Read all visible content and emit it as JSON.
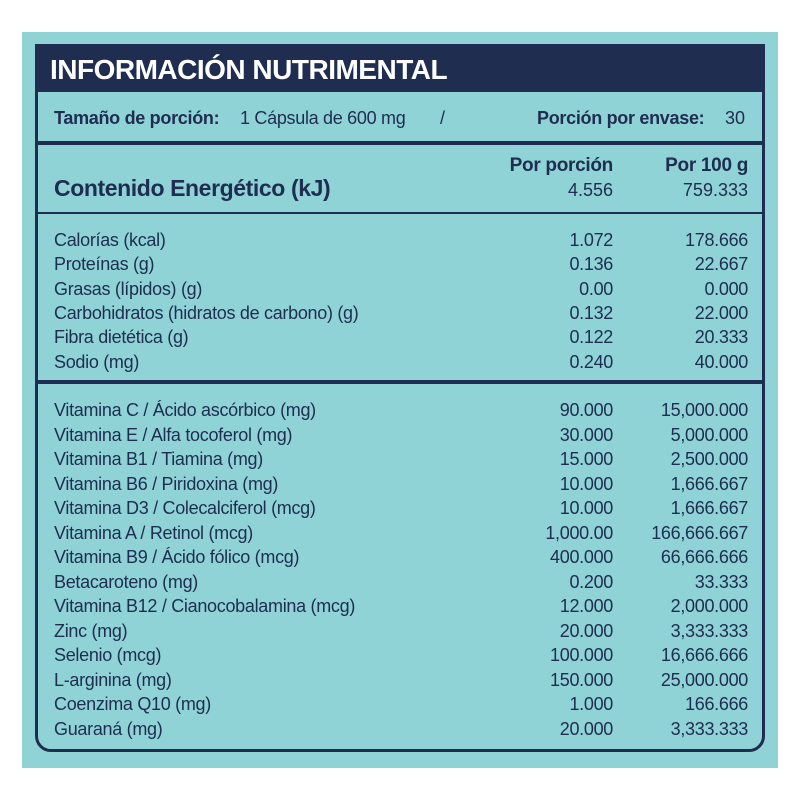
{
  "header": {
    "title": "INFORMACIÓN NUTRIMENTAL"
  },
  "serving": {
    "size_label": "Tamaño de porción:",
    "size_value": "1 Cápsula de 600 mg",
    "separator": "/",
    "count_label": "Porción por envase:",
    "count_value": "30"
  },
  "columns": [
    "Por porción",
    "Por 100 g"
  ],
  "energy": {
    "name": "Contenido Energético (kJ)",
    "values": [
      "4.556",
      "759.333"
    ]
  },
  "nutrients": [
    [
      "Calorías (kcal)",
      "1.072",
      "178.666"
    ],
    [
      "Proteínas (g)",
      "0.136",
      "22.667"
    ],
    [
      "Grasas (lípidos) (g)",
      "0.00",
      "0.000"
    ],
    [
      "Carbohidratos (hidratos de carbono) (g)",
      "0.132",
      "22.000"
    ],
    [
      "Fibra dietética (g)",
      "0.122",
      "20.333"
    ],
    [
      "Sodio (mg)",
      "0.240",
      "40.000"
    ]
  ],
  "vitamins": [
    [
      "Vitamina C / Ácido ascórbico (mg)",
      "90.000",
      "15,000.000"
    ],
    [
      "Vitamina E / Alfa tocoferol (mg)",
      "30.000",
      "5,000.000"
    ],
    [
      "Vitamina B1 / Tiamina (mg)",
      "15.000",
      "2,500.000"
    ],
    [
      "Vitamina B6 / Piridoxina (mg)",
      "10.000",
      "1,666.667"
    ],
    [
      "Vitamina D3 / Colecalciferol (mcg)",
      "10.000",
      "1,666.667"
    ],
    [
      "Vitamina A / Retinol (mcg)",
      "1,000.00",
      "166,666.667"
    ],
    [
      "Vitamina B9 / Ácido fólico (mcg)",
      "400.000",
      "66,666.666"
    ],
    [
      "Betacaroteno (mg)",
      "0.200",
      "33.333"
    ],
    [
      "Vitamina B12 / Cianocobalamina (mcg)",
      "12.000",
      "2,000.000"
    ],
    [
      "Zinc (mg)",
      "20.000",
      "3,333.333"
    ],
    [
      "Selenio (mcg)",
      "100.000",
      "16,666.666"
    ],
    [
      "L-arginina (mg)",
      "150.000",
      "25,000.000"
    ],
    [
      "Coenzima Q10 (mg)",
      "1.000",
      "166.666"
    ],
    [
      "Guaraná (mg)",
      "20.000",
      "3,333.333"
    ]
  ]
}
